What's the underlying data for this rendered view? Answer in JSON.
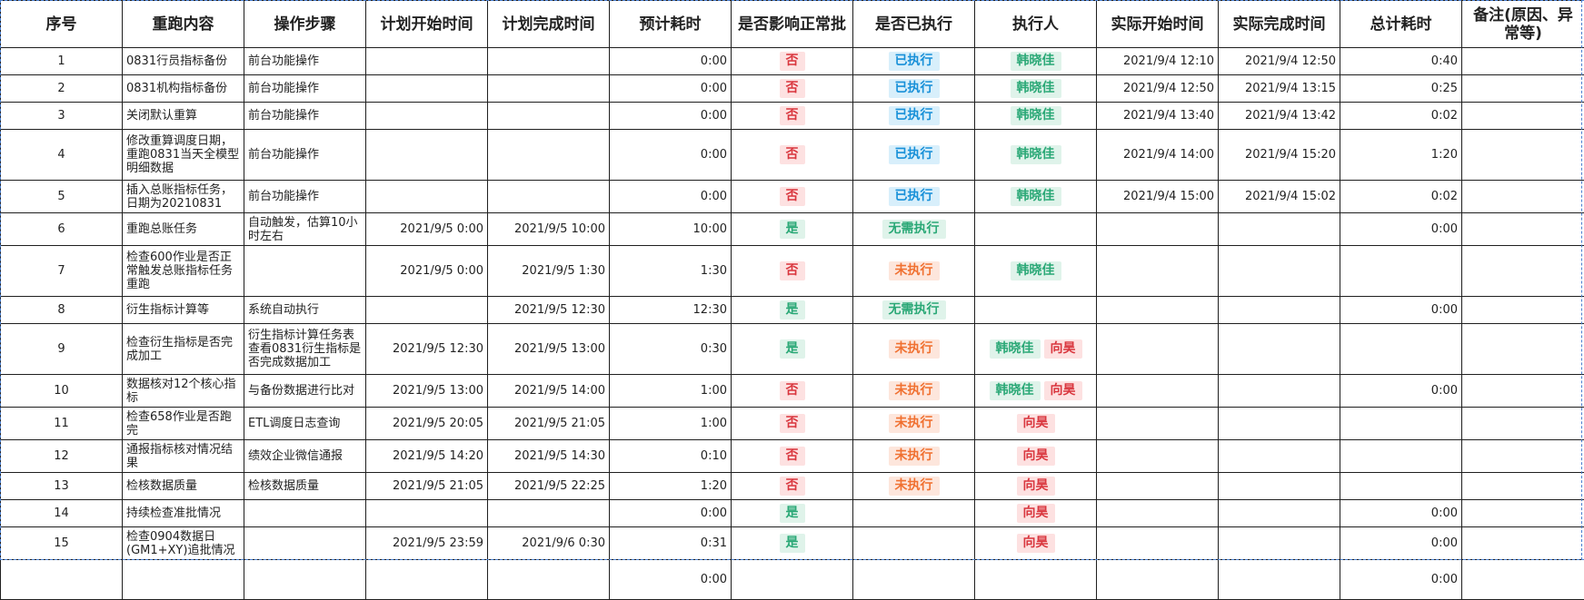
{
  "headers": [
    "序号",
    "重跑内容",
    "操作步骤",
    "计划开始时间",
    "计划完成时间",
    "预计耗时",
    "是否影响正常批",
    "是否已执行",
    "执行人",
    "实际开始时间",
    "实际完成时间",
    "总计耗时",
    "备注(原因、异常等)"
  ],
  "colors": {
    "no": "#d9363e",
    "yes": "#2aa876",
    "done": "#1890d8",
    "todo": "#f07030",
    "selection": "#4a7fd0"
  },
  "rows": [
    {
      "no": "1",
      "content": "0831行员指标备份",
      "step": "前台功能操作",
      "plan_start": "",
      "plan_end": "",
      "est": "0:00",
      "affect": "否",
      "status": "已执行",
      "executors": [
        "韩晓佳"
      ],
      "act_start": "2021/9/4 12:10",
      "act_end": "2021/9/4 12:50",
      "total": "0:40",
      "note": ""
    },
    {
      "no": "2",
      "content": "0831机构指标备份",
      "step": "前台功能操作",
      "plan_start": "",
      "plan_end": "",
      "est": "0:00",
      "affect": "否",
      "status": "已执行",
      "executors": [
        "韩晓佳"
      ],
      "act_start": "2021/9/4 12:50",
      "act_end": "2021/9/4 13:15",
      "total": "0:25",
      "note": ""
    },
    {
      "no": "3",
      "content": "关闭默认重算",
      "step": "前台功能操作",
      "plan_start": "",
      "plan_end": "",
      "est": "0:00",
      "affect": "否",
      "status": "已执行",
      "executors": [
        "韩晓佳"
      ],
      "act_start": "2021/9/4 13:40",
      "act_end": "2021/9/4 13:42",
      "total": "0:02",
      "note": ""
    },
    {
      "no": "4",
      "content": "修改重算调度日期，重跑0831当天全模型明细数据",
      "step": "前台功能操作",
      "plan_start": "",
      "plan_end": "",
      "est": "0:00",
      "affect": "否",
      "status": "已执行",
      "executors": [
        "韩晓佳"
      ],
      "act_start": "2021/9/4 14:00",
      "act_end": "2021/9/4 15:20",
      "total": "1:20",
      "note": ""
    },
    {
      "no": "5",
      "content": "插入总账指标任务，日期为20210831",
      "step": "前台功能操作",
      "plan_start": "",
      "plan_end": "",
      "est": "0:00",
      "affect": "否",
      "status": "已执行",
      "executors": [
        "韩晓佳"
      ],
      "act_start": "2021/9/4 15:00",
      "act_end": "2021/9/4 15:02",
      "total": "0:02",
      "note": ""
    },
    {
      "no": "6",
      "content": "重跑总账任务",
      "step": "自动触发，估算10小时左右",
      "plan_start": "2021/9/5 0:00",
      "plan_end": "2021/9/5 10:00",
      "est": "10:00",
      "affect": "是",
      "status": "无需执行",
      "executors": [],
      "act_start": "",
      "act_end": "",
      "total": "0:00",
      "note": ""
    },
    {
      "no": "7",
      "content": "检查600作业是否正常触发总账指标任务重跑",
      "step": "",
      "plan_start": "2021/9/5 0:00",
      "plan_end": "2021/9/5 1:30",
      "est": "1:30",
      "affect": "否",
      "status": "未执行",
      "executors": [
        "韩晓佳"
      ],
      "act_start": "",
      "act_end": "",
      "total": "",
      "note": ""
    },
    {
      "no": "8",
      "content": "衍生指标计算等",
      "step": "系统自动执行",
      "plan_start": "",
      "plan_end": "2021/9/5 12:30",
      "est": "12:30",
      "affect": "是",
      "status": "无需执行",
      "executors": [],
      "act_start": "",
      "act_end": "",
      "total": "0:00",
      "note": ""
    },
    {
      "no": "9",
      "content": "检查衍生指标是否完成加工",
      "step": "衍生指标计算任务表查看0831衍生指标是否完成数据加工",
      "plan_start": "2021/9/5 12:30",
      "plan_end": "2021/9/5 13:00",
      "est": "0:30",
      "affect": "是",
      "status": "未执行",
      "executors": [
        "韩晓佳",
        "向昊"
      ],
      "act_start": "",
      "act_end": "",
      "total": "",
      "note": ""
    },
    {
      "no": "10",
      "content": "数据核对12个核心指标",
      "step": "与备份数据进行比对",
      "plan_start": "2021/9/5 13:00",
      "plan_end": "2021/9/5 14:00",
      "est": "1:00",
      "affect": "否",
      "status": "未执行",
      "executors": [
        "韩晓佳",
        "向昊"
      ],
      "act_start": "",
      "act_end": "",
      "total": "0:00",
      "note": ""
    },
    {
      "no": "11",
      "content": "检查658作业是否跑完",
      "step": "ETL调度日志查询",
      "plan_start": "2021/9/5 20:05",
      "plan_end": "2021/9/5 21:05",
      "est": "1:00",
      "affect": "否",
      "status": "未执行",
      "executors": [
        "向昊"
      ],
      "act_start": "",
      "act_end": "",
      "total": "",
      "note": ""
    },
    {
      "no": "12",
      "content": "通报指标核对情况结果",
      "step": "绩效企业微信通报",
      "plan_start": "2021/9/5 14:20",
      "plan_end": "2021/9/5 14:30",
      "est": "0:10",
      "affect": "否",
      "status": "未执行",
      "executors": [
        "向昊"
      ],
      "act_start": "",
      "act_end": "",
      "total": "",
      "note": ""
    },
    {
      "no": "13",
      "content": "检核数据质量",
      "step": "检核数据质量",
      "plan_start": "2021/9/5 21:05",
      "plan_end": "2021/9/5 22:25",
      "est": "1:20",
      "affect": "否",
      "status": "未执行",
      "executors": [
        "向昊"
      ],
      "act_start": "",
      "act_end": "",
      "total": "",
      "note": ""
    },
    {
      "no": "14",
      "content": "持续检查准批情况",
      "step": "",
      "plan_start": "",
      "plan_end": "",
      "est": "0:00",
      "affect": "是",
      "status": "",
      "executors": [
        "向昊"
      ],
      "act_start": "",
      "act_end": "",
      "total": "0:00",
      "note": ""
    },
    {
      "no": "15",
      "content": "检查0904数据日(GM1+XY)追批情况",
      "step": "",
      "plan_start": "2021/9/5 23:59",
      "plan_end": "2021/9/6 0:30",
      "est": "0:31",
      "affect": "是",
      "status": "",
      "executors": [
        "向昊"
      ],
      "act_start": "",
      "act_end": "",
      "total": "0:00",
      "note": ""
    },
    {
      "no": "",
      "content": "",
      "step": "",
      "plan_start": "",
      "plan_end": "",
      "est": "0:00",
      "affect": "",
      "status": "",
      "executors": [],
      "act_start": "",
      "act_end": "",
      "total": "0:00",
      "note": ""
    }
  ]
}
